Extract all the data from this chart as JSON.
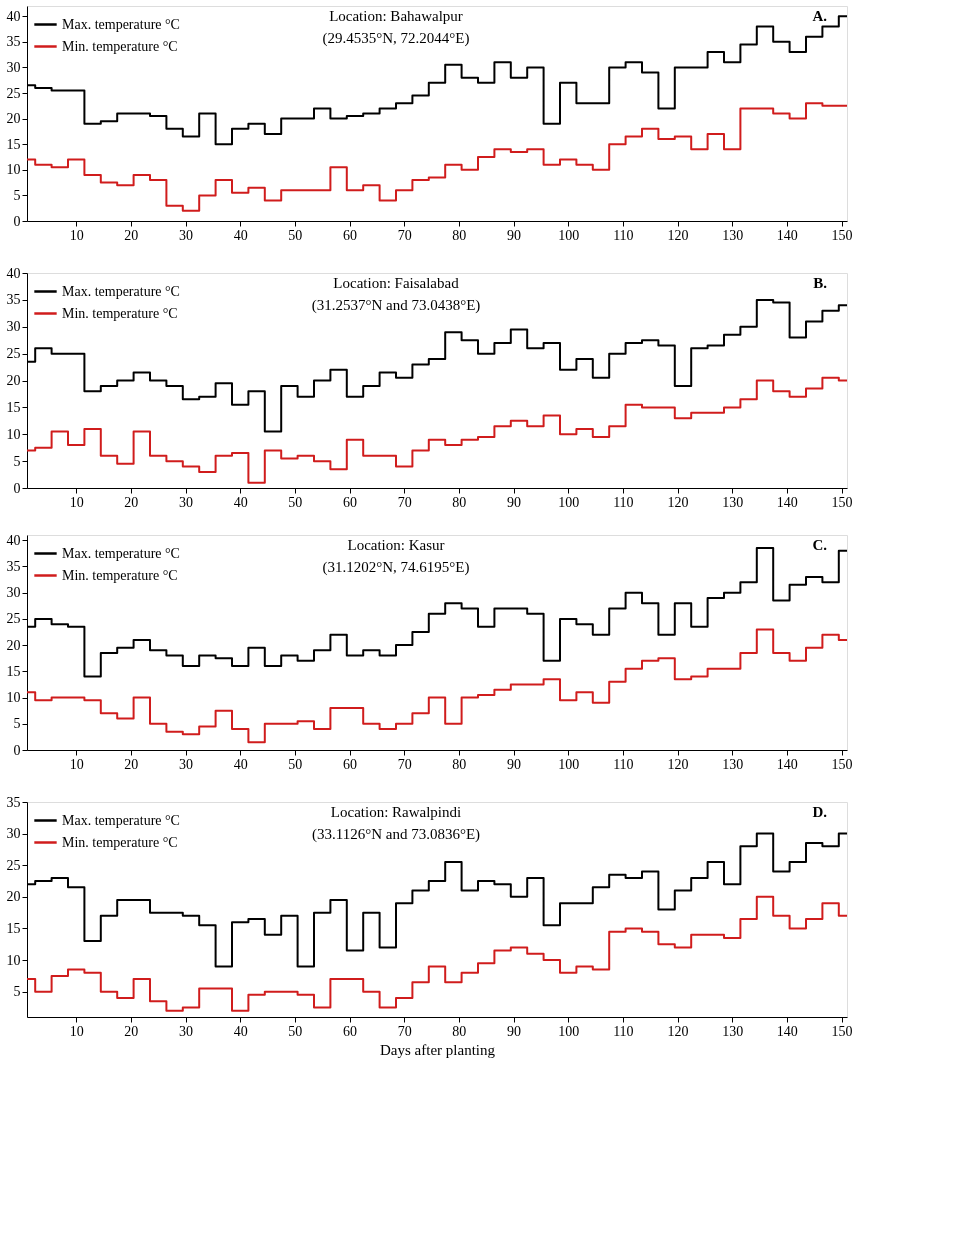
{
  "chart_data": [
    {
      "type": "step",
      "xlim": [
        1,
        151
      ],
      "xticks": [
        10,
        20,
        30,
        40,
        50,
        60,
        70,
        80,
        90,
        100,
        110,
        120,
        130,
        140,
        150
      ],
      "ylim": [
        0,
        42
      ],
      "yticks": [
        0,
        5,
        10,
        15,
        20,
        25,
        30,
        35,
        40
      ],
      "legend": "top left",
      "annotations": [
        "Location: Bahawalpur",
        "(29.4535°N, 72.2044°E)",
        "A."
      ],
      "x": [
        1,
        4,
        7,
        10,
        13,
        16,
        19,
        22,
        25,
        28,
        31,
        34,
        37,
        40,
        43,
        46,
        49,
        52,
        55,
        58,
        61,
        64,
        67,
        70,
        73,
        76,
        79,
        82,
        85,
        88,
        91,
        94,
        97,
        100,
        103,
        106,
        109,
        112,
        115,
        118,
        121,
        124,
        127,
        130,
        133,
        136,
        139,
        142,
        145,
        148,
        151
      ],
      "series": [
        {
          "name": "Max. temperature °C",
          "color": "#000000",
          "values": [
            26.5,
            26,
            25.5,
            25.5,
            19,
            19.5,
            21,
            21,
            20.5,
            18,
            16.5,
            21,
            15,
            18,
            19,
            17,
            20,
            20,
            22,
            20,
            20.5,
            21,
            22,
            23,
            24.5,
            27,
            30.5,
            28,
            27,
            31,
            28,
            30,
            19,
            27,
            23,
            23,
            30,
            31,
            29,
            22,
            30,
            30,
            33,
            31,
            34.5,
            38,
            35,
            33,
            36,
            38,
            40
          ]
        },
        {
          "name": "Min. temperature °C",
          "color": "#d01c1c",
          "values": [
            12,
            11,
            10.5,
            12,
            9,
            7.5,
            7,
            9,
            8,
            3,
            2,
            5,
            8,
            5.5,
            6.5,
            4,
            6,
            6,
            6,
            10.5,
            6,
            7,
            4,
            6,
            8,
            8.5,
            11,
            10,
            12.5,
            14,
            13.5,
            14,
            11,
            12,
            11,
            10,
            15,
            16.5,
            18,
            16,
            16.5,
            14,
            17,
            14,
            22,
            22,
            21,
            20,
            23,
            22.5,
            22.5
          ]
        }
      ]
    },
    {
      "type": "step",
      "xlim": [
        1,
        151
      ],
      "xticks": [
        10,
        20,
        30,
        40,
        50,
        60,
        70,
        80,
        90,
        100,
        110,
        120,
        130,
        140,
        150
      ],
      "ylim": [
        0,
        40
      ],
      "yticks": [
        0,
        5,
        10,
        15,
        20,
        25,
        30,
        35,
        40
      ],
      "legend": "top left",
      "annotations": [
        "Location: Faisalabad",
        "(31.2537°N and 73.0438°E)",
        "B."
      ],
      "x": [
        1,
        4,
        7,
        10,
        13,
        16,
        19,
        22,
        25,
        28,
        31,
        34,
        37,
        40,
        43,
        46,
        49,
        52,
        55,
        58,
        61,
        64,
        67,
        70,
        73,
        76,
        79,
        82,
        85,
        88,
        91,
        94,
        97,
        100,
        103,
        106,
        109,
        112,
        115,
        118,
        121,
        124,
        127,
        130,
        133,
        136,
        139,
        142,
        145,
        148,
        151
      ],
      "series": [
        {
          "name": "Max. temperature °C",
          "color": "#000000",
          "values": [
            23.5,
            26,
            25,
            25,
            18,
            19,
            20,
            21.5,
            20,
            19,
            16.5,
            17,
            19.5,
            15.5,
            18,
            10.5,
            19,
            17,
            20,
            22,
            17,
            19,
            21.5,
            20.5,
            23,
            24,
            29,
            27.5,
            25,
            27,
            29.5,
            26,
            27,
            22,
            24,
            20.5,
            25,
            27,
            27.5,
            26.5,
            19,
            26,
            26.5,
            28.5,
            30,
            35,
            34.5,
            28,
            31,
            33,
            34
          ]
        },
        {
          "name": "Min. temperature °C",
          "color": "#d01c1c",
          "values": [
            7,
            7.5,
            10.5,
            8,
            11,
            6,
            4.5,
            10.5,
            6,
            5,
            4,
            3,
            6,
            6.5,
            1,
            7,
            5.5,
            6,
            5,
            3.5,
            9,
            6,
            6,
            4,
            7,
            9,
            8,
            9,
            9.5,
            11.5,
            12.5,
            11.5,
            13.5,
            10,
            11,
            9.5,
            11.5,
            15.5,
            15,
            15,
            13,
            14,
            14,
            15,
            16.5,
            20,
            18,
            17,
            18.5,
            20.5,
            20
          ]
        }
      ]
    },
    {
      "type": "step",
      "xlim": [
        1,
        151
      ],
      "xticks": [
        10,
        20,
        30,
        40,
        50,
        60,
        70,
        80,
        90,
        100,
        110,
        120,
        130,
        140,
        150
      ],
      "ylim": [
        0,
        41
      ],
      "yticks": [
        0,
        5,
        10,
        15,
        20,
        25,
        30,
        35,
        40
      ],
      "legend": "top left",
      "annotations": [
        "Location: Kasur",
        "(31.1202°N, 74.6195°E)",
        "C."
      ],
      "x": [
        1,
        4,
        7,
        10,
        13,
        16,
        19,
        22,
        25,
        28,
        31,
        34,
        37,
        40,
        43,
        46,
        49,
        52,
        55,
        58,
        61,
        64,
        67,
        70,
        73,
        76,
        79,
        82,
        85,
        88,
        91,
        94,
        97,
        100,
        103,
        106,
        109,
        112,
        115,
        118,
        121,
        124,
        127,
        130,
        133,
        136,
        139,
        142,
        145,
        148,
        151
      ],
      "series": [
        {
          "name": "Max. temperature °C",
          "color": "#000000",
          "values": [
            23.5,
            25,
            24,
            23.5,
            14,
            18.5,
            19.5,
            21,
            19,
            18,
            16,
            18,
            17.5,
            16,
            19.5,
            16,
            18,
            17,
            19,
            22,
            18,
            19,
            18,
            20,
            22.5,
            26,
            28,
            27,
            23.5,
            27,
            27,
            26,
            17,
            25,
            24,
            22,
            27,
            30,
            28,
            22,
            28,
            23.5,
            29,
            30,
            32,
            38.5,
            28.5,
            31.5,
            33,
            32,
            38
          ]
        },
        {
          "name": "Min. temperature °C",
          "color": "#d01c1c",
          "values": [
            11,
            9.5,
            10,
            10,
            9.5,
            7,
            6,
            10,
            5,
            3.5,
            3,
            4.5,
            7.5,
            4,
            1.5,
            5,
            5,
            5.5,
            4,
            8,
            8,
            5,
            4,
            5,
            7,
            10,
            5,
            10,
            10.5,
            11.5,
            12.5,
            12.5,
            13.5,
            9.5,
            11,
            9,
            13,
            15.5,
            17,
            17.5,
            13.5,
            14,
            15.5,
            15.5,
            18.5,
            23,
            18.5,
            17,
            19.5,
            22,
            21
          ]
        }
      ]
    },
    {
      "type": "step",
      "xlim": [
        1,
        151
      ],
      "xticks": [
        10,
        20,
        30,
        40,
        50,
        60,
        70,
        80,
        90,
        100,
        110,
        120,
        130,
        140,
        150
      ],
      "ylim": [
        1,
        35
      ],
      "yticks": [
        5,
        10,
        15,
        20,
        25,
        30,
        35
      ],
      "legend": "top left",
      "xlabel": "Days after planting",
      "annotations": [
        "Location: Rawalpindi",
        "(33.1126°N and 73.0836°E)",
        "D."
      ],
      "x": [
        1,
        4,
        7,
        10,
        13,
        16,
        19,
        22,
        25,
        28,
        31,
        34,
        37,
        40,
        43,
        46,
        49,
        52,
        55,
        58,
        61,
        64,
        67,
        70,
        73,
        76,
        79,
        82,
        85,
        88,
        91,
        94,
        97,
        100,
        103,
        106,
        109,
        112,
        115,
        118,
        121,
        124,
        127,
        130,
        133,
        136,
        139,
        142,
        145,
        148,
        151
      ],
      "series": [
        {
          "name": "Max. temperature °C",
          "color": "#000000",
          "values": [
            22,
            22.5,
            23,
            21.5,
            13,
            17,
            19.5,
            19.5,
            17.5,
            17.5,
            17,
            15.5,
            9,
            16,
            16.5,
            14,
            17,
            9,
            17.5,
            19.5,
            11.5,
            17.5,
            12,
            19,
            21,
            22.5,
            25.5,
            21,
            22.5,
            22,
            20,
            23,
            15.5,
            19,
            19,
            21.5,
            23.5,
            23,
            24,
            18,
            21,
            23,
            25.5,
            22,
            28,
            30,
            24,
            25.5,
            28.5,
            28,
            30
          ]
        },
        {
          "name": "Min. temperature °C",
          "color": "#d01c1c",
          "values": [
            7,
            5,
            7.5,
            8.5,
            8,
            5,
            4,
            7,
            3.5,
            2,
            2.5,
            5.5,
            5.5,
            2,
            4.5,
            5,
            5,
            4.5,
            2.5,
            7,
            7,
            5,
            2.5,
            4,
            6.5,
            9,
            6.5,
            8,
            9.5,
            11.5,
            12,
            11,
            10,
            8,
            9,
            8.5,
            14.5,
            15,
            14.5,
            12.5,
            12,
            14,
            14,
            13.5,
            16.5,
            20,
            17,
            15,
            16.5,
            19,
            17
          ]
        }
      ]
    }
  ]
}
